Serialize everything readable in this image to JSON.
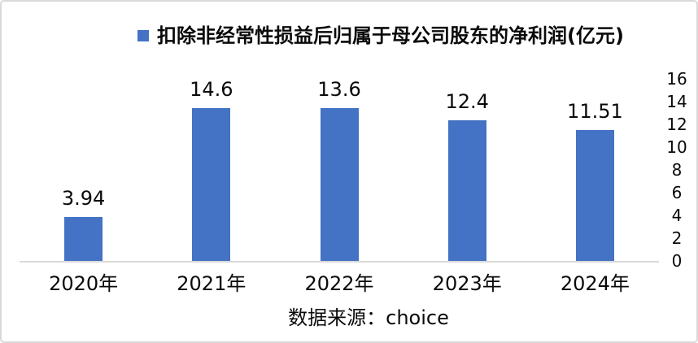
{
  "chart": {
    "colors": {
      "bar": "#4472C4",
      "axis_line": "#D9D9D9",
      "border": "#D9D9D9",
      "text": "#0A0A0A"
    }
  },
  "chart_data": {
    "type": "bar",
    "title": "扣除非经常性损益后归属于母公司股东的净利润(亿元)",
    "categories": [
      "2020年",
      "2021年",
      "2022年",
      "2023年",
      "2024年"
    ],
    "values": [
      3.94,
      14.6,
      13.6,
      12.4,
      11.51
    ],
    "data_labels": [
      "3.94",
      "14.6",
      "13.6",
      "12.4",
      "11.51"
    ],
    "xlabel": "",
    "ylabel": "",
    "ylim": [
      0,
      16
    ],
    "yticks": [
      0,
      2,
      4,
      6,
      8,
      10,
      12,
      14,
      16
    ],
    "ytick_side": "right",
    "legend_position": "top-center",
    "legend_marker": "square",
    "grid": false,
    "source_note": "数据来源：choice"
  }
}
